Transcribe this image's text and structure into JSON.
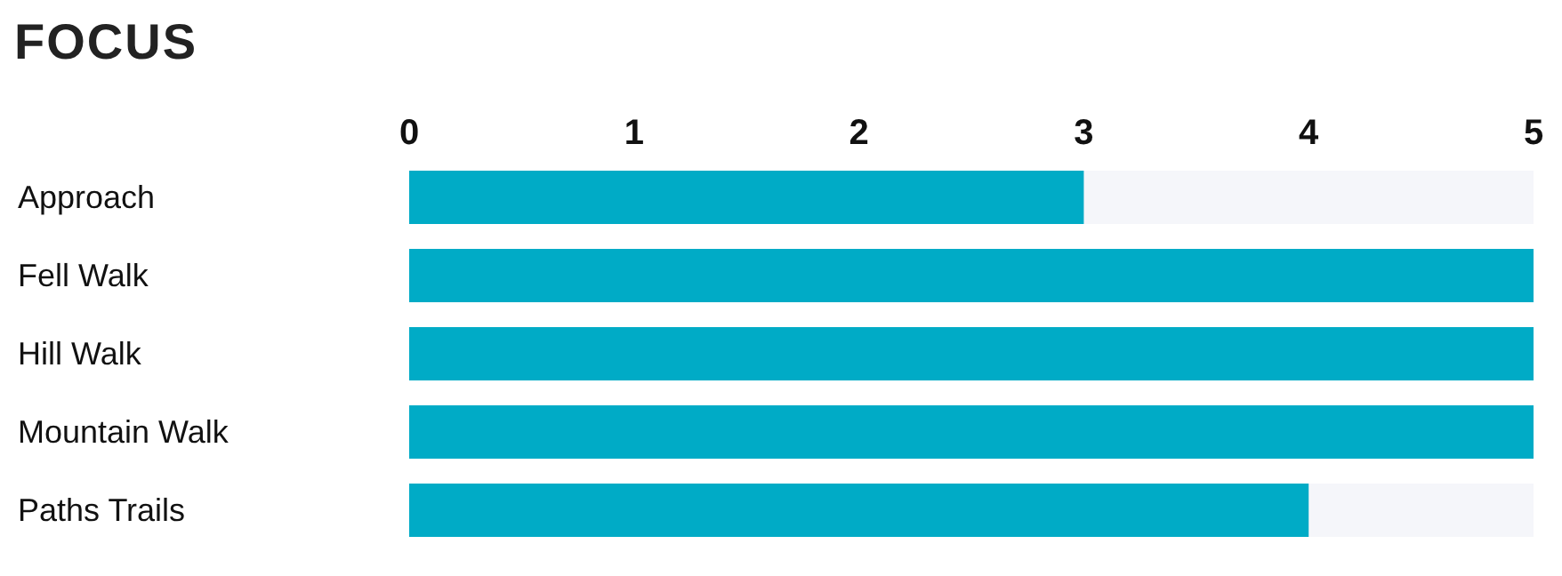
{
  "chart_data": {
    "type": "bar",
    "title": "FOCUS",
    "orientation": "horizontal",
    "categories": [
      "Approach",
      "Fell Walk",
      "Hill Walk",
      "Mountain Walk",
      "Paths Trails"
    ],
    "values": [
      3,
      5,
      5,
      5,
      4
    ],
    "color": "#00abc6",
    "xlim": [
      0,
      5
    ],
    "xticks": [
      0,
      1,
      2,
      3,
      4,
      5
    ],
    "grid": false,
    "legend": false
  }
}
